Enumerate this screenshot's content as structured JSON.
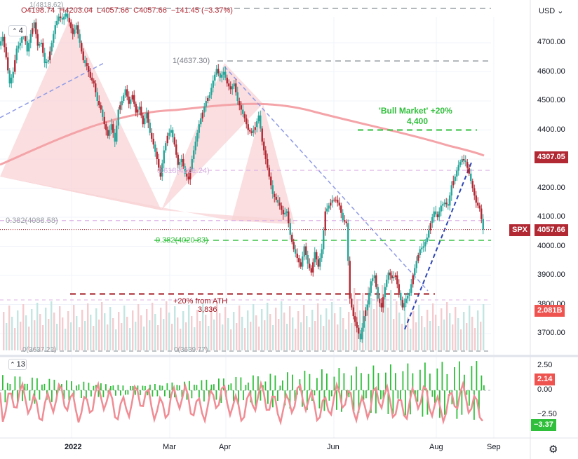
{
  "header": {
    "ohlc_fragment": "O4198.74",
    "high": "H4203.04",
    "low": "L4057.66",
    "close": "C4057.66",
    "change": "−141.45 (−3.37%)",
    "currency": "USD",
    "indicator_count_price": "4",
    "indicator_count_lower": "13"
  },
  "annotations": {
    "bull_market_title": "'Bull Market' +20%",
    "bull_market_value": "4,400",
    "ath_title": "+20% from ATH",
    "ath_value": "3,836",
    "fib_1": "1(4637.30)",
    "fib_0382_upper": "0.382(4088.58)",
    "fib_0382_lower": "0.382(4020.83)",
    "fib_0618": "0.618(4261.24)",
    "fib_0_left": "0(3637.22)",
    "fib_0_mid": "0(3639.77)",
    "top_fragment": "1(4818.62)"
  },
  "price_tags": {
    "ma_value": "4307.05",
    "spx_symbol": "SPX",
    "spx_value": "4057.66",
    "volume_value": "2.081B",
    "osc_high": "2.14",
    "osc_low": "−3.37"
  },
  "colors": {
    "bull": "#26a69a",
    "bear": "#b22833",
    "ma": "#f4a4a8",
    "green_line": "#2fbf3a",
    "dark_red": "#a0141e",
    "triangle": "#f8d3d5",
    "blue_dash": "#8f9be6",
    "navy_dash": "#2d46b4"
  },
  "chart_data": {
    "type": "candlestick",
    "y_axis_ticks": [
      "4700.00",
      "4600.00",
      "4500.00",
      "4400.00",
      "4300.00",
      "4200.00",
      "4100.00",
      "4000.00",
      "3900.00",
      "3800.00",
      "3700.00"
    ],
    "osc_axis_ticks": [
      "2.50",
      "0.00",
      "−2.50"
    ],
    "x_axis_ticks": [
      "2022",
      "Mar",
      "Apr",
      "Jun",
      "Aug",
      "Sep"
    ],
    "ylim": [
      3640,
      4830
    ],
    "levels": {
      "bull_market": 4400,
      "ath_minus_20": 3836,
      "fib_1": 4637.3,
      "fib_0382_a": 4088.58,
      "fib_0382_b": 4020.83,
      "fib_0618": 4261.24,
      "ma_end": 4307.05,
      "last_close": 4057.66
    },
    "close_path": [
      [
        0,
        4690
      ],
      [
        5,
        4720
      ],
      [
        10,
        4650
      ],
      [
        15,
        4560
      ],
      [
        20,
        4600
      ],
      [
        25,
        4680
      ],
      [
        30,
        4700
      ],
      [
        35,
        4740
      ],
      [
        40,
        4670
      ],
      [
        45,
        4730
      ],
      [
        50,
        4770
      ],
      [
        55,
        4690
      ],
      [
        60,
        4700
      ],
      [
        65,
        4630
      ],
      [
        70,
        4640
      ],
      [
        75,
        4700
      ],
      [
        80,
        4760
      ],
      [
        85,
        4790
      ],
      [
        90,
        4780
      ],
      [
        95,
        4800
      ],
      [
        100,
        4770
      ],
      [
        105,
        4730
      ],
      [
        110,
        4760
      ],
      [
        115,
        4700
      ],
      [
        120,
        4640
      ],
      [
        125,
        4620
      ],
      [
        130,
        4580
      ],
      [
        135,
        4560
      ],
      [
        140,
        4500
      ],
      [
        145,
        4470
      ],
      [
        150,
        4420
      ],
      [
        155,
        4380
      ],
      [
        160,
        4420
      ],
      [
        165,
        4360
      ],
      [
        170,
        4470
      ],
      [
        175,
        4500
      ],
      [
        180,
        4540
      ],
      [
        185,
        4490
      ],
      [
        190,
        4520
      ],
      [
        195,
        4460
      ],
      [
        200,
        4480
      ],
      [
        205,
        4420
      ],
      [
        210,
        4460
      ],
      [
        215,
        4390
      ],
      [
        220,
        4350
      ],
      [
        225,
        4300
      ],
      [
        230,
        4240
      ],
      [
        235,
        4330
      ],
      [
        240,
        4380
      ],
      [
        245,
        4400
      ],
      [
        250,
        4350
      ],
      [
        255,
        4280
      ],
      [
        260,
        4300
      ],
      [
        265,
        4250
      ],
      [
        270,
        4230
      ],
      [
        275,
        4300
      ],
      [
        280,
        4360
      ],
      [
        285,
        4420
      ],
      [
        290,
        4460
      ],
      [
        295,
        4500
      ],
      [
        300,
        4520
      ],
      [
        305,
        4570
      ],
      [
        310,
        4610
      ],
      [
        315,
        4580
      ],
      [
        320,
        4600
      ],
      [
        325,
        4560
      ],
      [
        330,
        4540
      ],
      [
        335,
        4560
      ],
      [
        340,
        4500
      ],
      [
        345,
        4470
      ],
      [
        350,
        4440
      ],
      [
        355,
        4400
      ],
      [
        360,
        4390
      ],
      [
        365,
        4410
      ],
      [
        370,
        4450
      ],
      [
        375,
        4360
      ],
      [
        380,
        4300
      ],
      [
        385,
        4240
      ],
      [
        390,
        4180
      ],
      [
        395,
        4160
      ],
      [
        400,
        4140
      ],
      [
        405,
        4110
      ],
      [
        410,
        4120
      ],
      [
        415,
        4040
      ],
      [
        420,
        3990
      ],
      [
        425,
        3960
      ],
      [
        430,
        3930
      ],
      [
        435,
        4000
      ],
      [
        440,
        3940
      ],
      [
        445,
        3910
      ],
      [
        450,
        3980
      ],
      [
        455,
        3930
      ],
      [
        460,
        3990
      ],
      [
        465,
        4120
      ],
      [
        470,
        4140
      ],
      [
        475,
        4160
      ],
      [
        480,
        4160
      ],
      [
        485,
        4140
      ],
      [
        490,
        4090
      ],
      [
        495,
        4080
      ],
      [
        500,
        3820
      ],
      [
        505,
        3760
      ],
      [
        510,
        3720
      ],
      [
        515,
        3680
      ],
      [
        520,
        3760
      ],
      [
        525,
        3800
      ],
      [
        530,
        3880
      ],
      [
        535,
        3900
      ],
      [
        540,
        3820
      ],
      [
        545,
        3790
      ],
      [
        550,
        3860
      ],
      [
        555,
        3910
      ],
      [
        560,
        3890
      ],
      [
        565,
        3900
      ],
      [
        570,
        3840
      ],
      [
        575,
        3790
      ],
      [
        580,
        3820
      ],
      [
        585,
        3840
      ],
      [
        590,
        3900
      ],
      [
        595,
        3950
      ],
      [
        600,
        3990
      ],
      [
        605,
        4000
      ],
      [
        610,
        4030
      ],
      [
        615,
        4080
      ],
      [
        620,
        4120
      ],
      [
        625,
        4100
      ],
      [
        630,
        4140
      ],
      [
        635,
        4150
      ],
      [
        640,
        4140
      ],
      [
        645,
        4210
      ],
      [
        650,
        4240
      ],
      [
        655,
        4280
      ],
      [
        660,
        4300
      ],
      [
        665,
        4290
      ],
      [
        670,
        4250
      ],
      [
        675,
        4200
      ],
      [
        680,
        4150
      ],
      [
        685,
        4130
      ],
      [
        690,
        4057.66
      ]
    ]
  }
}
